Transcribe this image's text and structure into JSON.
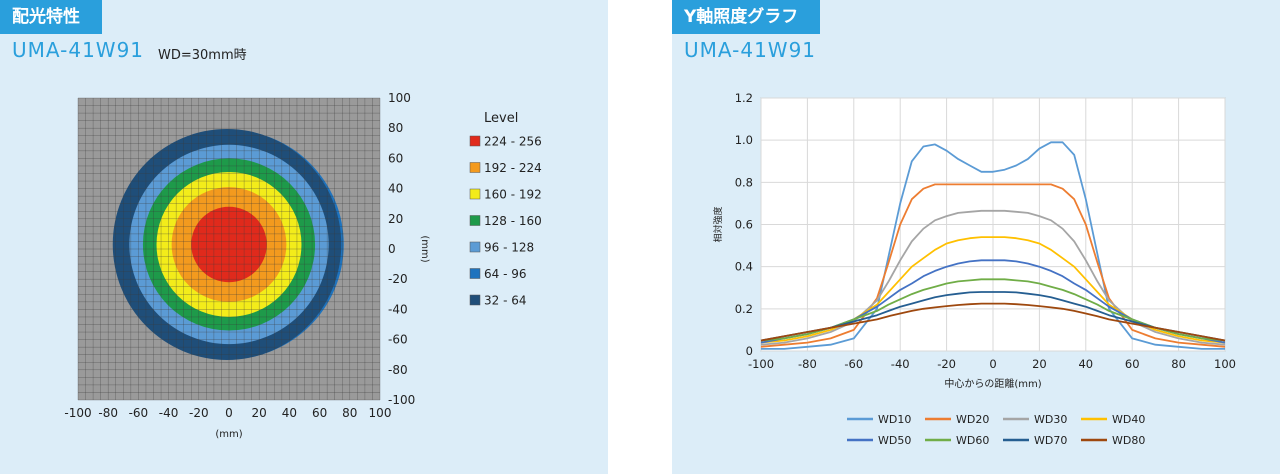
{
  "left_panel": {
    "tag": "配光特性",
    "model": "UMA-41W91",
    "wd_note": "WD=30mm時"
  },
  "right_panel": {
    "tag": "Y軸照度グラフ",
    "model": "UMA-41W91"
  },
  "chart_data": [
    {
      "type": "heatmap",
      "xlabel": "(mm)",
      "ylabel": "(mm)",
      "xlim": [
        -100,
        100
      ],
      "ylim": [
        -100,
        100
      ],
      "x_ticks": [
        "-100",
        "-80",
        "-60",
        "-40",
        "-20",
        "0",
        "20",
        "40",
        "60",
        "80",
        "100"
      ],
      "y_ticks": [
        "100",
        "80",
        "60",
        "40",
        "20",
        "0",
        "-20",
        "-40",
        "-60",
        "-80",
        "-100"
      ],
      "grid": true,
      "background_color": "#9a9a9a",
      "legend_title": "Level",
      "legend_position": "right",
      "levels": [
        {
          "label": "224 - 256",
          "color": "#e02a1c",
          "radius_mm": 25
        },
        {
          "label": "192 - 224",
          "color": "#f39a1e",
          "radius_mm": 38
        },
        {
          "label": "160 - 192",
          "color": "#f3ec1a",
          "radius_mm": 48
        },
        {
          "label": "128 - 160",
          "color": "#1e9a4a",
          "radius_mm": 57
        },
        {
          "label": "96 - 128",
          "color": "#5b9bd5",
          "radius_mm": 66
        },
        {
          "label": "64 - 96",
          "color": "#1e73be",
          "radius_mm": 76
        },
        {
          "label": "32 - 64",
          "color": "#1f4e79",
          "radius_mm": 75
        }
      ]
    },
    {
      "type": "line",
      "xlabel": "中心からの距離(mm)",
      "ylabel": "相対強度",
      "xlim": [
        -100,
        100
      ],
      "ylim": [
        0,
        1.2
      ],
      "x_ticks": [
        "-100",
        "-80",
        "-60",
        "-40",
        "-20",
        "0",
        "20",
        "40",
        "60",
        "80",
        "100"
      ],
      "y_ticks": [
        "0",
        "0.2",
        "0.4",
        "0.6",
        "0.8",
        "1.0",
        "1.2"
      ],
      "grid": true,
      "legend_position": "bottom",
      "x": [
        -100,
        -90,
        -80,
        -70,
        -60,
        -50,
        -45,
        -40,
        -35,
        -30,
        -25,
        -20,
        -15,
        -10,
        -5,
        0,
        5,
        10,
        15,
        20,
        25,
        30,
        35,
        40,
        45,
        50,
        60,
        70,
        80,
        90,
        100
      ],
      "series": [
        {
          "name": "WD10",
          "color": "#5b9bd5",
          "values": [
            0.01,
            0.01,
            0.02,
            0.03,
            0.06,
            0.2,
            0.45,
            0.7,
            0.9,
            0.97,
            0.98,
            0.95,
            0.91,
            0.88,
            0.85,
            0.85,
            0.86,
            0.88,
            0.91,
            0.96,
            0.99,
            0.99,
            0.93,
            0.72,
            0.46,
            0.2,
            0.06,
            0.03,
            0.02,
            0.01,
            0.01
          ]
        },
        {
          "name": "WD20",
          "color": "#ed7d31",
          "values": [
            0.02,
            0.03,
            0.04,
            0.06,
            0.1,
            0.25,
            0.42,
            0.6,
            0.72,
            0.77,
            0.79,
            0.79,
            0.79,
            0.79,
            0.79,
            0.79,
            0.79,
            0.79,
            0.79,
            0.79,
            0.79,
            0.77,
            0.72,
            0.6,
            0.42,
            0.25,
            0.1,
            0.06,
            0.04,
            0.03,
            0.02
          ]
        },
        {
          "name": "WD30",
          "color": "#a5a5a5",
          "values": [
            0.03,
            0.04,
            0.06,
            0.09,
            0.14,
            0.24,
            0.33,
            0.43,
            0.52,
            0.58,
            0.62,
            0.64,
            0.655,
            0.66,
            0.665,
            0.665,
            0.665,
            0.66,
            0.655,
            0.64,
            0.62,
            0.58,
            0.52,
            0.43,
            0.33,
            0.24,
            0.14,
            0.09,
            0.06,
            0.04,
            0.03
          ]
        },
        {
          "name": "WD40",
          "color": "#ffc000",
          "values": [
            0.04,
            0.05,
            0.07,
            0.1,
            0.15,
            0.22,
            0.28,
            0.34,
            0.4,
            0.44,
            0.48,
            0.51,
            0.525,
            0.535,
            0.54,
            0.54,
            0.54,
            0.535,
            0.525,
            0.51,
            0.48,
            0.44,
            0.4,
            0.34,
            0.28,
            0.22,
            0.15,
            0.1,
            0.07,
            0.05,
            0.04
          ]
        },
        {
          "name": "WD50",
          "color": "#4472c4",
          "values": [
            0.04,
            0.06,
            0.08,
            0.11,
            0.15,
            0.21,
            0.25,
            0.29,
            0.32,
            0.355,
            0.38,
            0.4,
            0.415,
            0.425,
            0.43,
            0.43,
            0.43,
            0.425,
            0.415,
            0.4,
            0.38,
            0.355,
            0.32,
            0.29,
            0.25,
            0.21,
            0.15,
            0.11,
            0.08,
            0.06,
            0.04
          ]
        },
        {
          "name": "WD60",
          "color": "#70ad47",
          "values": [
            0.05,
            0.06,
            0.08,
            0.11,
            0.15,
            0.19,
            0.22,
            0.245,
            0.27,
            0.29,
            0.305,
            0.32,
            0.33,
            0.335,
            0.34,
            0.34,
            0.34,
            0.335,
            0.33,
            0.32,
            0.305,
            0.29,
            0.27,
            0.245,
            0.22,
            0.19,
            0.15,
            0.11,
            0.08,
            0.06,
            0.05
          ]
        },
        {
          "name": "WD70",
          "color": "#255e91",
          "values": [
            0.05,
            0.07,
            0.09,
            0.11,
            0.14,
            0.17,
            0.19,
            0.21,
            0.225,
            0.24,
            0.255,
            0.265,
            0.272,
            0.278,
            0.28,
            0.28,
            0.28,
            0.278,
            0.272,
            0.265,
            0.255,
            0.24,
            0.225,
            0.21,
            0.19,
            0.17,
            0.14,
            0.11,
            0.09,
            0.07,
            0.05
          ]
        },
        {
          "name": "WD80",
          "color": "#9e480e",
          "values": [
            0.05,
            0.07,
            0.09,
            0.11,
            0.13,
            0.15,
            0.165,
            0.178,
            0.19,
            0.2,
            0.207,
            0.213,
            0.218,
            0.222,
            0.225,
            0.225,
            0.225,
            0.222,
            0.218,
            0.213,
            0.207,
            0.2,
            0.19,
            0.178,
            0.165,
            0.15,
            0.13,
            0.11,
            0.09,
            0.07,
            0.05
          ]
        }
      ]
    }
  ]
}
